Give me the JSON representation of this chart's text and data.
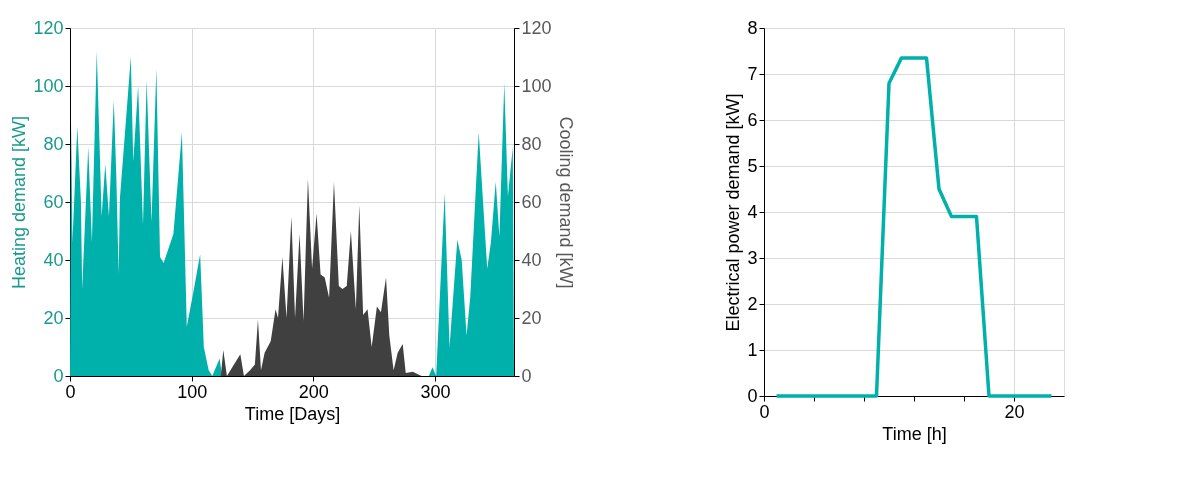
{
  "chart_data": [
    {
      "type": "area",
      "xlabel": "Time [Days]",
      "ylabel": "Heating demand [kW]",
      "y2label": "Cooling demand [kW]",
      "xlim": [
        0,
        365
      ],
      "xticks": [
        0,
        100,
        200,
        300
      ],
      "ylim": [
        0,
        120
      ],
      "yticks": [
        0,
        20,
        40,
        60,
        80,
        100,
        120
      ],
      "y2lim": [
        0,
        120
      ],
      "y2ticks": [
        0,
        20,
        40,
        60,
        80,
        100,
        120
      ],
      "grid": true,
      "series": [
        {
          "color": "#404040",
          "axis": "y2",
          "x": [
            0,
            124,
            126,
            129,
            140,
            143,
            148,
            152,
            154.5,
            157,
            160,
            165,
            169,
            171,
            174.6,
            178,
            182,
            185,
            188.7,
            192,
            195.6,
            199,
            202.7,
            206,
            209.4,
            213,
            217,
            221,
            224,
            227.5,
            230.9,
            235,
            237.8,
            241,
            244.6,
            248,
            252.3,
            255.6,
            259.8,
            262.5,
            266,
            269.4,
            273.5,
            276,
            281.8,
            289,
            365
          ],
          "values": [
            0,
            0,
            9,
            0,
            7.5,
            0,
            2,
            4,
            19.5,
            2,
            8,
            12,
            23,
            20,
            41,
            20,
            55,
            20,
            49,
            19,
            68,
            37,
            56,
            35,
            34,
            27,
            67,
            31,
            30,
            31,
            50,
            23,
            59,
            21,
            23,
            10,
            24,
            22,
            34,
            14,
            2,
            8,
            11,
            1,
            1.5,
            0,
            0
          ]
        },
        {
          "color": "#00b0aa",
          "x": [
            0,
            1,
            2,
            6,
            9,
            10,
            15,
            18,
            22,
            24,
            26,
            29,
            32,
            36,
            38,
            40,
            41,
            50,
            52,
            56,
            60,
            63,
            67,
            71,
            74,
            77,
            85,
            92,
            96,
            101,
            107,
            110,
            114,
            117,
            123,
            125,
            295,
            298,
            301,
            308,
            312,
            318.4,
            322,
            326,
            329,
            336,
            340,
            343,
            346,
            350,
            353,
            357,
            360,
            364,
            365
          ],
          "values": [
            0,
            87,
            46,
            86,
            60,
            30,
            79,
            46,
            112,
            84,
            55,
            73,
            55,
            95,
            70,
            35,
            61,
            110,
            74,
            100,
            52,
            102,
            53,
            106,
            41,
            39,
            49,
            84,
            17,
            28,
            42,
            10,
            2,
            0,
            6,
            0,
            0,
            3,
            0,
            63,
            10,
            47,
            40,
            14,
            27,
            84,
            57,
            37,
            46,
            67,
            48,
            101,
            62,
            79,
            0
          ]
        }
      ]
    },
    {
      "type": "line",
      "xlabel": "Time [h]",
      "ylabel": "Electrical power demand [kW]",
      "xlim": [
        0,
        24
      ],
      "xticks": [
        0,
        {
          "value": 4,
          "label": null
        },
        {
          "value": 8,
          "label": null
        },
        {
          "value": 12,
          "label": null
        },
        {
          "value": 16,
          "label": null
        },
        20
      ],
      "ylim": [
        0,
        8
      ],
      "yticks": [
        0,
        1,
        2,
        3,
        4,
        5,
        6,
        7,
        8
      ],
      "grid": true,
      "series": [
        {
          "color": "#00b0aa",
          "x": [
            1,
            9,
            10,
            11,
            13,
            14,
            15,
            17,
            18,
            23
          ],
          "values": [
            0,
            0,
            6.8,
            7.35,
            7.35,
            4.5,
            3.9,
            3.9,
            0,
            0
          ]
        }
      ]
    }
  ]
}
